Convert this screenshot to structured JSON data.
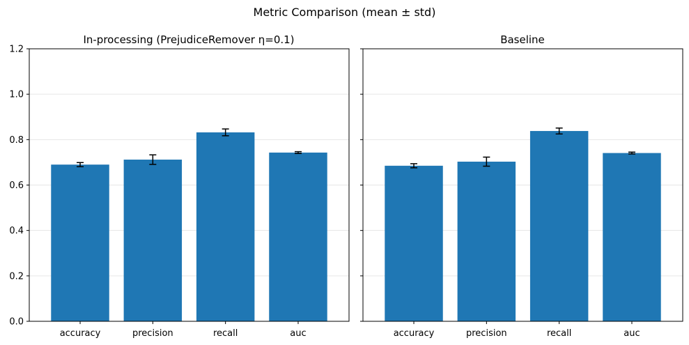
{
  "figure": {
    "title": "Metric Comparison (mean ± std)"
  },
  "colors": {
    "bar": "#1f77b4",
    "errorbar": "#000000",
    "grid": "#e6e6e6",
    "axis": "#000000"
  },
  "chart_data": [
    {
      "type": "bar",
      "title": "In-processing (PrejudiceRemover η=0.1)",
      "categories": [
        "accuracy",
        "precision",
        "recall",
        "auc"
      ],
      "values": [
        0.69,
        0.712,
        0.832,
        0.743
      ],
      "errors": [
        0.009,
        0.021,
        0.015,
        0.004
      ],
      "ylim": [
        0,
        1.2
      ],
      "yticks": [
        0.0,
        0.2,
        0.4,
        0.6,
        0.8,
        1.0,
        1.2
      ],
      "ytick_labels": [
        "0.0",
        "0.2",
        "0.4",
        "0.6",
        "0.8",
        "1.0",
        "1.2"
      ],
      "grid": "y",
      "xlabel": "",
      "ylabel": ""
    },
    {
      "type": "bar",
      "title": "Baseline",
      "categories": [
        "accuracy",
        "precision",
        "recall",
        "auc"
      ],
      "values": [
        0.685,
        0.703,
        0.838,
        0.741
      ],
      "errors": [
        0.009,
        0.02,
        0.013,
        0.004
      ],
      "ylim": [
        0,
        1.2
      ],
      "yticks": [
        0.0,
        0.2,
        0.4,
        0.6,
        0.8,
        1.0,
        1.2
      ],
      "grid": "y",
      "shared_y": true,
      "xlabel": "",
      "ylabel": ""
    }
  ]
}
